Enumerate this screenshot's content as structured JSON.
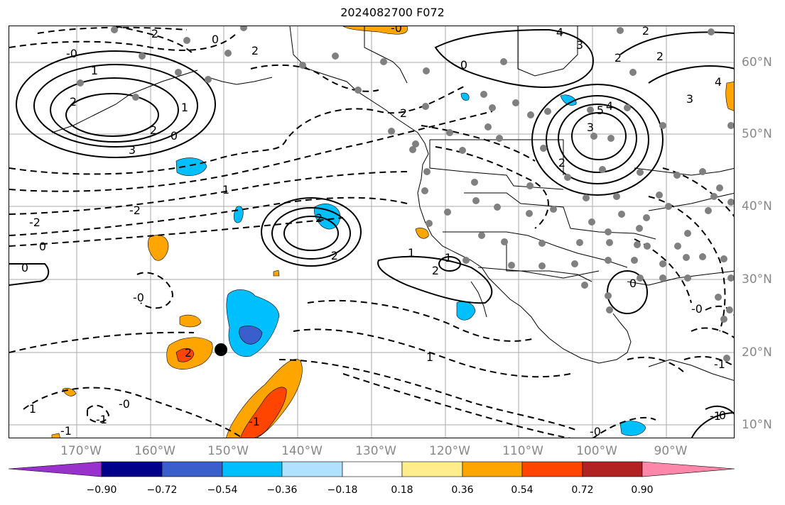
{
  "title": "2024082700 F072",
  "lon_labels": [
    "170°W",
    "160°W",
    "150°W",
    "140°W",
    "130°W",
    "120°W",
    "110°W",
    "100°W",
    "90°W"
  ],
  "lat_labels": [
    "60°N",
    "50°N",
    "40°N",
    "30°N",
    "20°N",
    "10°N"
  ],
  "colorbar": {
    "ticks": [
      "−0.90",
      "−0.72",
      "−0.54",
      "−0.36",
      "−0.18",
      "0.18",
      "0.36",
      "0.54",
      "0.72",
      "0.90"
    ],
    "colors": [
      "#9932CC",
      "#00008B",
      "#3A5FCD",
      "#00BFFF",
      "#B0E2FF",
      "#FFFFFF",
      "#FFEC8B",
      "#FFA500",
      "#FF4500",
      "#B22222",
      "#FF88AA"
    ]
  },
  "contour_labels": [
    "2",
    "0",
    "-0",
    "2",
    "1",
    "1",
    "0",
    "3",
    "2",
    "-0",
    "2",
    "2",
    "-2",
    "4",
    "3",
    "2",
    "2",
    "1",
    "-2",
    "0",
    "2",
    "-2",
    "-0",
    "0",
    "1",
    "1",
    "2",
    "-0",
    "-1",
    "-1",
    "1",
    "2",
    "-1",
    "-1",
    "-0",
    "1",
    "-0",
    "4",
    "3",
    "2",
    "0",
    "3",
    "4",
    "5",
    "2",
    "-1",
    "0",
    "0"
  ],
  "colors": {
    "frame": "#000000",
    "grid": "#aaaaaa",
    "dots": "#808080",
    "marker": "#000000",
    "axis_labels": "#888888"
  }
}
